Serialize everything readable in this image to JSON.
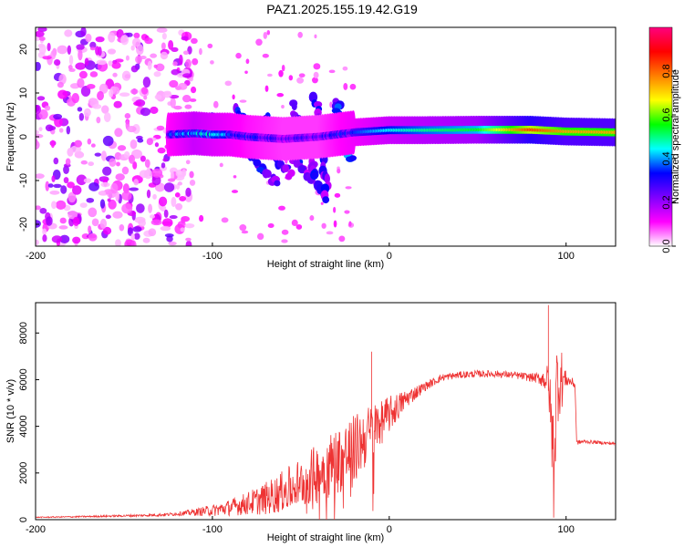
{
  "title": "PAZ1.2025.155.19.42.G19",
  "chart_data": [
    {
      "type": "heatmap",
      "xlabel": "Height of straight line (km)",
      "ylabel": "Frequency (Hz)",
      "xlim": [
        -200,
        128
      ],
      "ylim": [
        -25,
        25
      ],
      "xticks": [
        -200,
        -100,
        0,
        100
      ],
      "yticks": [
        -20,
        -10,
        0,
        10,
        20
      ],
      "colorbar": {
        "label": "Normalized spectral amplitude",
        "range": [
          0,
          1
        ],
        "ticks": [
          "0.0",
          "0.2",
          "0.4",
          "0.6",
          "0.8"
        ],
        "colors": [
          "#ffffff",
          "#ff00ff",
          "#7f00ff",
          "#0000ff",
          "#00ffff",
          "#00ff00",
          "#ffff00",
          "#ff7f00",
          "#ff0000",
          "#ff007f"
        ]
      },
      "ridge": [
        {
          "x": -125,
          "f": 0.5,
          "amp": 0.3
        },
        {
          "x": -110,
          "f": 0.8,
          "amp": 0.45
        },
        {
          "x": -100,
          "f": 0.5,
          "amp": 0.4
        },
        {
          "x": -90,
          "f": 0.5,
          "amp": 0.35
        },
        {
          "x": -80,
          "f": 0.0,
          "amp": 0.3
        },
        {
          "x": -60,
          "f": -0.5,
          "amp": 0.25
        },
        {
          "x": -40,
          "f": 0.0,
          "amp": 0.25
        },
        {
          "x": -20,
          "f": 1.0,
          "amp": 0.35
        },
        {
          "x": 0,
          "f": 1.5,
          "amp": 0.45
        },
        {
          "x": 20,
          "f": 1.5,
          "amp": 0.5
        },
        {
          "x": 50,
          "f": 1.6,
          "amp": 0.55
        },
        {
          "x": 80,
          "f": 1.6,
          "amp": 0.85
        },
        {
          "x": 100,
          "f": 1.2,
          "amp": 0.75
        },
        {
          "x": 128,
          "f": 1.0,
          "amp": 0.75
        }
      ],
      "branches": [
        {
          "x0": -100,
          "f0": 4,
          "x1": -62,
          "f1": -11,
          "amp": 0.3
        },
        {
          "x0": -88,
          "f0": 6,
          "x1": -55,
          "f1": -9,
          "amp": 0.3
        },
        {
          "x0": -70,
          "f0": 5,
          "x1": -45,
          "f1": -10,
          "amp": 0.3
        },
        {
          "x0": -55,
          "f0": 7,
          "x1": -38,
          "f1": -13,
          "amp": 0.3
        },
        {
          "x0": -42,
          "f0": 9,
          "x1": -35,
          "f1": -14,
          "amp": 0.3
        },
        {
          "x0": -30,
          "f0": 8,
          "x1": -22,
          "f1": -5,
          "amp": 0.35
        }
      ],
      "noise_region": {
        "x": [
          -200,
          -120
        ],
        "f": [
          -25,
          25
        ]
      }
    },
    {
      "type": "line",
      "xlabel": "Height of straight line (km)",
      "ylabel": "SNR (10 * v/v)",
      "xlim": [
        -200,
        128
      ],
      "ylim": [
        0,
        9300
      ],
      "xticks": [
        -200,
        -100,
        0,
        100
      ],
      "yticks": [
        0,
        2000,
        4000,
        6000,
        8000
      ],
      "color": "#ee3333",
      "series": [
        {
          "x": [
            -200,
            -180,
            -160,
            -140,
            -130,
            -120,
            -110,
            -100,
            -90,
            -80,
            -70,
            -60,
            -50,
            -40,
            -30,
            -20,
            -10,
            0,
            10,
            20,
            30,
            40,
            50,
            60,
            70,
            80,
            85,
            90,
            93,
            95,
            97,
            100,
            103,
            105,
            106,
            110,
            120,
            128
          ],
          "y": [
            100,
            120,
            150,
            180,
            200,
            250,
            320,
            400,
            520,
            700,
            900,
            1200,
            1600,
            2000,
            2500,
            3000,
            3800,
            4500,
            5200,
            5700,
            6100,
            6200,
            6250,
            6250,
            6200,
            6100,
            6050,
            6000,
            2500,
            6100,
            6000,
            6000,
            5900,
            5800,
            3300,
            3350,
            3300,
            3250
          ],
          "jitter": [
            20,
            30,
            40,
            50,
            60,
            80,
            150,
            250,
            350,
            500,
            700,
            900,
            1100,
            1300,
            1500,
            1500,
            1200,
            800,
            400,
            200,
            150,
            150,
            150,
            150,
            150,
            180,
            250,
            700,
            2500,
            2000,
            1500,
            300,
            200,
            200,
            100,
            80,
            70,
            60
          ]
        }
      ],
      "annotations": [
        {
          "x": -10,
          "y": 7200
        },
        {
          "x": 90,
          "y": 9200
        },
        {
          "x": 93,
          "y": 150
        }
      ]
    }
  ]
}
